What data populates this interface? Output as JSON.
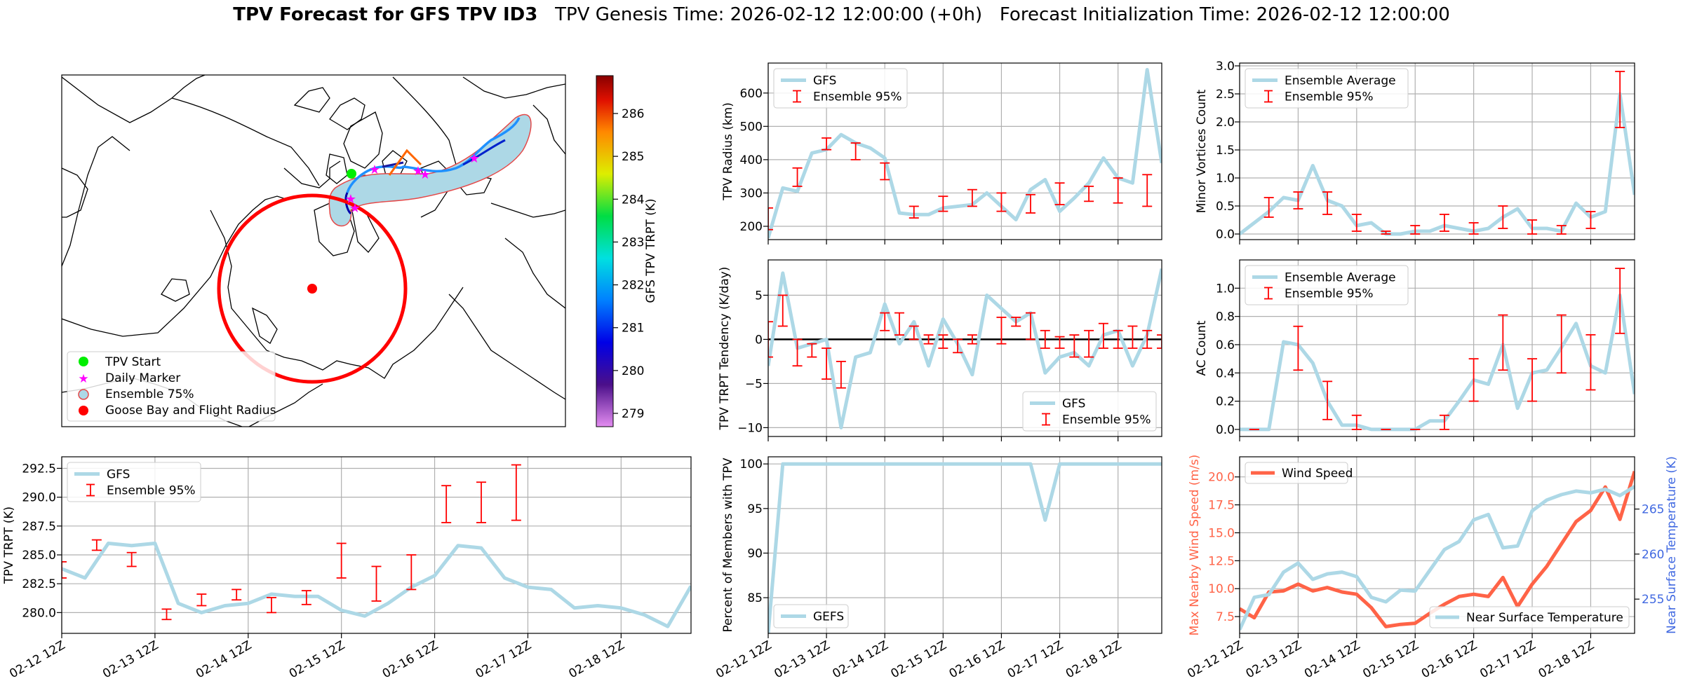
{
  "header": {
    "title_bold": "TPV Forecast for GFS TPV ID3",
    "title_rest": "TPV Genesis Time: 2026-02-12 12:00:00 (+0h)   Forecast Initialization Time: 2026-02-12 12:00:00"
  },
  "colors": {
    "gfs_line": "#add8e6",
    "errorbar": "#ff0000",
    "wind": "#ff6347",
    "temp_axis": "#4169e1",
    "tpv_start": "#00ee00",
    "daily_marker": "#ff00ff",
    "goose_bay": "#ff0000",
    "region_fill": "#add8e6",
    "radius_ring": "#ff0000",
    "track_orange": "#ff6600"
  },
  "map": {
    "legend": [
      "TPV Start",
      "Daily Marker",
      "Ensemble 75%",
      "Goose Bay and Flight Radius"
    ],
    "colorbar": {
      "label": "GFS TPV TRPT (K)",
      "ticks": [
        "286",
        "285",
        "284",
        "283",
        "282",
        "281",
        "280",
        "279"
      ]
    }
  },
  "chart_data": [
    {
      "id": "radius",
      "type": "line",
      "title": "",
      "xlabel": "",
      "ylabel": "TPV Radius (km)",
      "ylim": [
        160,
        690
      ],
      "yticks": [
        200,
        300,
        400,
        500,
        600
      ],
      "yticklabels": [
        "200",
        "300",
        "400",
        "500",
        "600"
      ],
      "xticklabels": [],
      "legend": [
        "GFS",
        "Ensemble 95%"
      ],
      "legend_loc": "upper-left",
      "series": [
        {
          "name": "GFS",
          "values": [
            165,
            315,
            305,
            420,
            430,
            475,
            450,
            435,
            405,
            240,
            235,
            235,
            255,
            260,
            265,
            300,
            260,
            220,
            310,
            340,
            245,
            285,
            330,
            405,
            345,
            330,
            670,
            390
          ]
        }
      ],
      "errorbars": [
        {
          "i": 0,
          "lo": 190,
          "hi": 255
        },
        {
          "i": 2,
          "lo": 320,
          "hi": 375
        },
        {
          "i": 4,
          "lo": 430,
          "hi": 465
        },
        {
          "i": 6,
          "lo": 400,
          "hi": 450
        },
        {
          "i": 8,
          "lo": 340,
          "hi": 390
        },
        {
          "i": 10,
          "lo": 225,
          "hi": 260
        },
        {
          "i": 12,
          "lo": 245,
          "hi": 290
        },
        {
          "i": 14,
          "lo": 260,
          "hi": 310
        },
        {
          "i": 16,
          "lo": 245,
          "hi": 300
        },
        {
          "i": 18,
          "lo": 240,
          "hi": 295
        },
        {
          "i": 20,
          "lo": 265,
          "hi": 330
        },
        {
          "i": 22,
          "lo": 275,
          "hi": 320
        },
        {
          "i": 24,
          "lo": 270,
          "hi": 345
        },
        {
          "i": 26,
          "lo": 260,
          "hi": 355
        }
      ]
    },
    {
      "id": "minor",
      "type": "line",
      "title": "",
      "xlabel": "",
      "ylabel": "Minor Vortices Count",
      "ylim": [
        -0.1,
        3.05
      ],
      "yticks": [
        0,
        0.5,
        1,
        1.5,
        2,
        2.5,
        3
      ],
      "yticklabels": [
        "0.0",
        "0.5",
        "1.0",
        "1.5",
        "2.0",
        "2.5",
        "3.0"
      ],
      "xticklabels": [],
      "legend": [
        "Ensemble Average",
        "Ensemble 95%"
      ],
      "legend_loc": "upper-left",
      "series": [
        {
          "name": "Ensemble Average",
          "values": [
            0.0,
            0.2,
            0.4,
            0.65,
            0.6,
            1.22,
            0.6,
            0.5,
            0.15,
            0.2,
            0.0,
            0.0,
            0.05,
            0.05,
            0.15,
            0.1,
            0.05,
            0.1,
            0.3,
            0.45,
            0.1,
            0.1,
            0.05,
            0.55,
            0.3,
            0.4,
            2.5,
            0.7
          ]
        }
      ],
      "errorbars": [
        {
          "i": 2,
          "lo": 0.3,
          "hi": 0.65
        },
        {
          "i": 4,
          "lo": 0.45,
          "hi": 0.75
        },
        {
          "i": 6,
          "lo": 0.35,
          "hi": 0.75
        },
        {
          "i": 8,
          "lo": 0.05,
          "hi": 0.35
        },
        {
          "i": 10,
          "lo": 0.0,
          "hi": 0.05
        },
        {
          "i": 12,
          "lo": 0.0,
          "hi": 0.15
        },
        {
          "i": 14,
          "lo": 0.05,
          "hi": 0.35
        },
        {
          "i": 16,
          "lo": 0.0,
          "hi": 0.2
        },
        {
          "i": 18,
          "lo": 0.1,
          "hi": 0.5
        },
        {
          "i": 20,
          "lo": 0.0,
          "hi": 0.25
        },
        {
          "i": 22,
          "lo": 0.0,
          "hi": 0.15
        },
        {
          "i": 24,
          "lo": 0.1,
          "hi": 0.4
        },
        {
          "i": 26,
          "lo": 1.9,
          "hi": 2.9
        }
      ]
    },
    {
      "id": "tendency",
      "type": "line",
      "title": "",
      "xlabel": "",
      "ylabel": "TPV TRPT Tendency (K/day)",
      "ylim": [
        -11,
        9
      ],
      "yticks": [
        -10,
        -5,
        0,
        5
      ],
      "yticklabels": [
        "−10",
        "−5",
        "0",
        "5"
      ],
      "zero_line": true,
      "xticklabels": [],
      "legend": [
        "GFS",
        "Ensemble 95%"
      ],
      "legend_loc": "lower-right",
      "series": [
        {
          "name": "GFS",
          "values": [
            -3,
            7.5,
            -1,
            -0.5,
            0,
            -10,
            -2,
            -1.5,
            4,
            -0.5,
            2,
            -3,
            2.3,
            -0.5,
            -4,
            5,
            3.5,
            2,
            3,
            -3.8,
            -2,
            -1.5,
            -3,
            0.5,
            1,
            -3,
            0.5,
            8
          ]
        }
      ],
      "errorbars": [
        {
          "i": 0,
          "lo": -2,
          "hi": 2
        },
        {
          "i": 1,
          "lo": 1.5,
          "hi": 5
        },
        {
          "i": 2,
          "lo": -3,
          "hi": 0
        },
        {
          "i": 3,
          "lo": -2,
          "hi": -0.5
        },
        {
          "i": 4,
          "lo": -4.5,
          "hi": -1
        },
        {
          "i": 5,
          "lo": -5.5,
          "hi": -2.5
        },
        {
          "i": 8,
          "lo": 1,
          "hi": 3
        },
        {
          "i": 9,
          "lo": 0.5,
          "hi": 3
        },
        {
          "i": 10,
          "lo": 0,
          "hi": 1.5
        },
        {
          "i": 11,
          "lo": -0.5,
          "hi": 0.5
        },
        {
          "i": 12,
          "lo": -1,
          "hi": 0.5
        },
        {
          "i": 13,
          "lo": -1.5,
          "hi": 0
        },
        {
          "i": 14,
          "lo": -0.5,
          "hi": 0.5
        },
        {
          "i": 16,
          "lo": -0.5,
          "hi": 2.5
        },
        {
          "i": 17,
          "lo": 1.5,
          "hi": 2.5
        },
        {
          "i": 18,
          "lo": 0,
          "hi": 3
        },
        {
          "i": 19,
          "lo": -1,
          "hi": 1
        },
        {
          "i": 20,
          "lo": -1,
          "hi": 0.3
        },
        {
          "i": 21,
          "lo": -2,
          "hi": 0.5
        },
        {
          "i": 22,
          "lo": -2,
          "hi": 1
        },
        {
          "i": 23,
          "lo": -1,
          "hi": 1.8
        },
        {
          "i": 24,
          "lo": -1,
          "hi": 1
        },
        {
          "i": 25,
          "lo": -1,
          "hi": 1.5
        },
        {
          "i": 26,
          "lo": -1,
          "hi": 1
        },
        {
          "i": 27,
          "lo": -1,
          "hi": 0.5
        }
      ]
    },
    {
      "id": "ac",
      "type": "line",
      "title": "",
      "xlabel": "",
      "ylabel": "AC Count",
      "ylim": [
        -0.05,
        1.2
      ],
      "yticks": [
        0,
        0.2,
        0.4,
        0.6,
        0.8,
        1.0
      ],
      "yticklabels": [
        "0.0",
        "0.2",
        "0.4",
        "0.6",
        "0.8",
        "1.0"
      ],
      "xticklabels": [],
      "legend": [
        "Ensemble Average",
        "Ensemble 95%"
      ],
      "legend_loc": "upper-left",
      "series": [
        {
          "name": "Ensemble Average",
          "values": [
            0.0,
            0.0,
            0.0,
            0.62,
            0.6,
            0.47,
            0.2,
            0.03,
            0.03,
            0.0,
            0.0,
            0.0,
            0.0,
            0.06,
            0.06,
            0.2,
            0.35,
            0.32,
            0.6,
            0.15,
            0.4,
            0.42,
            0.58,
            0.75,
            0.45,
            0.4,
            0.95,
            0.25
          ]
        }
      ],
      "errorbars": [
        {
          "i": 1,
          "lo": 0.0,
          "hi": 0.0
        },
        {
          "i": 4,
          "lo": 0.42,
          "hi": 0.73
        },
        {
          "i": 6,
          "lo": 0.07,
          "hi": 0.34
        },
        {
          "i": 8,
          "lo": 0.0,
          "hi": 0.1
        },
        {
          "i": 10,
          "lo": 0.0,
          "hi": 0.0
        },
        {
          "i": 12,
          "lo": 0.0,
          "hi": 0.0
        },
        {
          "i": 14,
          "lo": 0.0,
          "hi": 0.1
        },
        {
          "i": 16,
          "lo": 0.2,
          "hi": 0.5
        },
        {
          "i": 18,
          "lo": 0.42,
          "hi": 0.81
        },
        {
          "i": 20,
          "lo": 0.2,
          "hi": 0.5
        },
        {
          "i": 22,
          "lo": 0.4,
          "hi": 0.81
        },
        {
          "i": 24,
          "lo": 0.28,
          "hi": 0.67
        },
        {
          "i": 26,
          "lo": 0.68,
          "hi": 1.14
        }
      ]
    },
    {
      "id": "trpt",
      "type": "line",
      "title": "",
      "xlabel": "",
      "ylabel": "TPV TRPT (K)",
      "ylim": [
        278.2,
        293.5
      ],
      "yticks": [
        280,
        282.5,
        285,
        287.5,
        290,
        292.5
      ],
      "yticklabels": [
        "280.0",
        "282.5",
        "285.0",
        "287.5",
        "290.0",
        "292.5"
      ],
      "xticklabels": [
        "02-12 12Z",
        "02-13 12Z",
        "02-14 12Z",
        "02-15 12Z",
        "02-16 12Z",
        "02-17 12Z",
        "02-18 12Z"
      ],
      "legend": [
        "GFS",
        "Ensemble 95%"
      ],
      "legend_loc": "upper-left",
      "series": [
        {
          "name": "GFS",
          "values": [
            283.8,
            283,
            286,
            285.8,
            286,
            280.8,
            280,
            280.6,
            280.8,
            281.6,
            281.4,
            281.4,
            280.2,
            279.7,
            280.8,
            282.2,
            283.2,
            285.8,
            285.6,
            283,
            282.2,
            282,
            280.4,
            280.6,
            280.4,
            279.8,
            278.8,
            282.3
          ]
        }
      ],
      "errorbars": [
        {
          "i": 0,
          "lo": 283,
          "hi": 284.4
        },
        {
          "i": 3,
          "lo": 285.4,
          "hi": 286.3
        },
        {
          "i": 6,
          "lo": 284,
          "hi": 285.2
        },
        {
          "i": 9,
          "lo": 279.4,
          "hi": 280.3
        },
        {
          "i": 12,
          "lo": 280.6,
          "hi": 281.6
        },
        {
          "i": 15,
          "lo": 281.1,
          "hi": 282.0
        },
        {
          "i": 18,
          "lo": 280,
          "hi": 281.3
        },
        {
          "i": 21,
          "lo": 280.7,
          "hi": 281.9
        },
        {
          "i": 24,
          "lo": 283,
          "hi": 286
        },
        {
          "i": 27,
          "lo": 281,
          "hi": 284
        },
        {
          "i": 30,
          "lo": 282,
          "hi": 285
        },
        {
          "i": 33,
          "lo": 287.8,
          "hi": 291
        },
        {
          "i": 36,
          "lo": 287.8,
          "hi": 291.3
        },
        {
          "i": 39,
          "lo": 288,
          "hi": 292.8
        }
      ],
      "errorbar_index_scale": 0.5
    },
    {
      "id": "members",
      "type": "line",
      "title": "",
      "xlabel": "",
      "ylabel": "Percent of Members with TPV",
      "ylim": [
        81,
        100.8
      ],
      "yticks": [
        85,
        90,
        95,
        100
      ],
      "yticklabels": [
        "85",
        "90",
        "95",
        "100"
      ],
      "xticklabels": [
        "02-12 12Z",
        "02-13 12Z",
        "02-14 12Z",
        "02-15 12Z",
        "02-16 12Z",
        "02-17 12Z",
        "02-18 12Z"
      ],
      "legend": [
        "GEFS"
      ],
      "legend_loc": "lower-left",
      "series": [
        {
          "name": "GEFS",
          "values": [
            81,
            100,
            100,
            100,
            100,
            100,
            100,
            100,
            100,
            100,
            100,
            100,
            100,
            100,
            100,
            100,
            100,
            100,
            100,
            93.7,
            100,
            100,
            100,
            100,
            100,
            100,
            100,
            100
          ]
        }
      ],
      "errorbars": []
    },
    {
      "id": "wind",
      "type": "line",
      "title": "",
      "xlabel": "",
      "ylabel": "Max Nearby Wind Speed (m/s)",
      "ylabel2": "Near Surface Temperature (K)",
      "ylim": [
        6.0,
        21.8
      ],
      "yticks": [
        7.5,
        10,
        12.5,
        15,
        17.5,
        20
      ],
      "yticklabels": [
        "7.5",
        "10.0",
        "12.5",
        "15.0",
        "17.5",
        "20.0"
      ],
      "ylim2": [
        251.2,
        270.8
      ],
      "yticks2": [
        255,
        260,
        265
      ],
      "yticklabels2": [
        "255",
        "260",
        "265"
      ],
      "xticklabels": [
        "02-12 12Z",
        "02-13 12Z",
        "02-14 12Z",
        "02-15 12Z",
        "02-16 12Z",
        "02-17 12Z",
        "02-18 12Z"
      ],
      "legend": [
        "Wind Speed",
        "Near Surface Temperature"
      ],
      "series": [
        {
          "name": "Wind Speed",
          "axis": "left",
          "values": [
            8.2,
            7.4,
            9.7,
            9.8,
            10.4,
            9.8,
            10.1,
            9.7,
            9.5,
            8.3,
            6.6,
            6.8,
            6.9,
            7.8,
            8.6,
            9.3,
            9.5,
            9.3,
            11,
            8.4,
            10.4,
            12,
            14,
            16,
            17,
            19.1,
            16.2,
            20.5
          ]
        },
        {
          "name": "Near Surface Temperature",
          "axis": "right",
          "values": [
            251.6,
            255.2,
            255.5,
            258,
            259,
            257.2,
            257.8,
            258,
            257.5,
            255.2,
            254.7,
            256,
            255.9,
            258.2,
            260.5,
            261.4,
            263.8,
            264.4,
            260.7,
            260.9,
            264.8,
            266,
            266.6,
            267,
            266.8,
            267.2,
            266.5,
            267.5
          ]
        }
      ]
    }
  ]
}
